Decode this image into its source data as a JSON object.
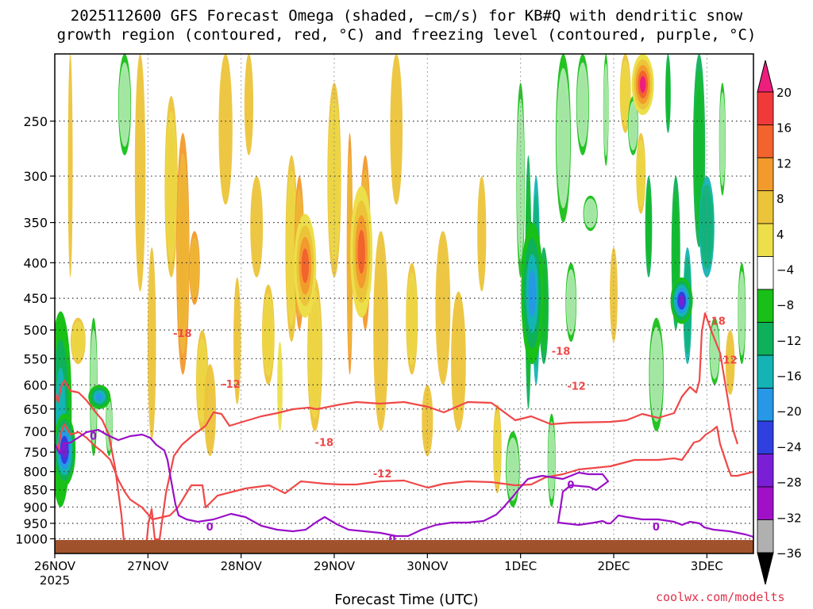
{
  "title_line1": "2025112600 GFS Forecast Omega (shaded, −cm/s) for KB#Q with dendritic snow",
  "title_line2": "growth region (contoured, red, °C) and freezing level (contoured, purple, °C)",
  "xlabel": "Forecast Time (UTC)",
  "credit": "coolwx.com/modelts",
  "chart_data": {
    "type": "heatmap",
    "ylabel": "",
    "y_axis": {
      "ticks": [
        250,
        300,
        350,
        400,
        450,
        500,
        550,
        600,
        650,
        700,
        750,
        800,
        850,
        900,
        950,
        1000
      ],
      "range": [
        1050,
        200
      ],
      "scale": "log-pressure"
    },
    "x_axis": {
      "ticks": [
        "26NOV",
        "27NOV",
        "28NOV",
        "29NOV",
        "30NOV",
        "1DEC",
        "2DEC",
        "3DEC"
      ],
      "first_tick_sublabel": "2025",
      "range_hours": [
        0,
        180
      ]
    },
    "colorbar": {
      "labels": [
        "20",
        "16",
        "12",
        "8",
        "4",
        "−4",
        "−8",
        "−12",
        "−16",
        "−20",
        "−24",
        "−28",
        "−32",
        "−36"
      ],
      "colors": [
        "#ee1e7c",
        "#f03a3a",
        "#f2632e",
        "#f29a2c",
        "#ecc43a",
        "#ecdf4a",
        "#ffffff",
        "#18c018",
        "#0fb05a",
        "#14b4b4",
        "#2698e6",
        "#2f3fe0",
        "#7a1fd6",
        "#a010c6",
        "#b0b0b0",
        "#000000"
      ]
    },
    "contours_red_C": [
      {
        "label": "-18",
        "points": [
          [
            0,
            495
          ],
          [
            4,
            507
          ],
          [
            8,
            488
          ],
          [
            12,
            480
          ],
          [
            20,
            493
          ],
          [
            30,
            495
          ],
          [
            40,
            505
          ],
          [
            50,
            518
          ],
          [
            60,
            530
          ],
          [
            68,
            548
          ],
          [
            76,
            590
          ],
          [
            84,
            650
          ],
          [
            92,
            735
          ],
          [
            100,
            732
          ],
          [
            108,
            728
          ],
          [
            114,
            700
          ],
          [
            118,
            660
          ],
          [
            122,
            642
          ],
          [
            126,
            680
          ],
          [
            132,
            680
          ],
          [
            140,
            622
          ],
          [
            150,
            575
          ],
          [
            160,
            561
          ],
          [
            175,
            548
          ],
          [
            190,
            537
          ],
          [
            200,
            520
          ],
          [
            210,
            522
          ],
          [
            220,
            537
          ],
          [
            240,
            531
          ],
          [
            260,
            525
          ],
          [
            280,
            521
          ],
          [
            300,
            516
          ],
          [
            320,
            514
          ],
          [
            330,
            516
          ],
          [
            360,
            510
          ],
          [
            380,
            507
          ],
          [
            410,
            509
          ],
          [
            440,
            507
          ],
          [
            470,
            513
          ],
          [
            490,
            520
          ],
          [
            520,
            507
          ],
          [
            550,
            508
          ],
          [
            580,
            530
          ],
          [
            600,
            525
          ],
          [
            625,
            535
          ],
          [
            650,
            533
          ],
          [
            700,
            532
          ],
          [
            720,
            530
          ],
          [
            740,
            522
          ],
          [
            760,
            527
          ],
          [
            780,
            521
          ],
          [
            790,
            500
          ],
          [
            800,
            488
          ],
          [
            808,
            495
          ],
          [
            812,
            480
          ],
          [
            815,
            418
          ],
          [
            819,
            395
          ],
          [
            828,
            420
          ],
          [
            838,
            445
          ],
          [
            848,
            505
          ],
          [
            854,
            541
          ],
          [
            860,
            560
          ]
        ]
      },
      {
        "label": "-12",
        "points": [
          [
            0,
            560
          ],
          [
            4,
            568
          ],
          [
            8,
            545
          ],
          [
            12,
            535
          ],
          [
            20,
            548
          ],
          [
            30,
            545
          ],
          [
            40,
            552
          ],
          [
            50,
            562
          ],
          [
            60,
            570
          ],
          [
            70,
            580
          ],
          [
            80,
            605
          ],
          [
            88,
            620
          ],
          [
            95,
            630
          ],
          [
            110,
            640
          ],
          [
            123,
            655
          ],
          [
            145,
            650
          ],
          [
            155,
            640
          ],
          [
            167,
            620
          ],
          [
            172,
            612
          ],
          [
            186,
            612
          ],
          [
            190,
            640
          ],
          [
            205,
            625
          ],
          [
            240,
            616
          ],
          [
            270,
            612
          ],
          [
            290,
            622
          ],
          [
            310,
            607
          ],
          [
            340,
            610
          ],
          [
            360,
            611
          ],
          [
            380,
            611
          ],
          [
            410,
            607
          ],
          [
            440,
            606
          ],
          [
            470,
            615
          ],
          [
            490,
            610
          ],
          [
            520,
            607
          ],
          [
            550,
            608
          ],
          [
            580,
            612
          ],
          [
            600,
            611
          ],
          [
            618,
            602
          ],
          [
            640,
            598
          ],
          [
            660,
            592
          ],
          [
            700,
            588
          ],
          [
            730,
            580
          ],
          [
            760,
            580
          ],
          [
            780,
            578
          ],
          [
            790,
            580
          ],
          [
            805,
            558
          ],
          [
            812,
            556
          ],
          [
            820,
            548
          ],
          [
            828,
            543
          ],
          [
            834,
            538
          ],
          [
            838,
            560
          ],
          [
            848,
            590
          ],
          [
            852,
            600
          ],
          [
            860,
            600
          ],
          [
            880,
            595
          ]
        ]
      },
      {
        "label": "0",
        "points": [
          [
            0,
            560
          ],
          [
            6,
            572
          ],
          [
            10,
            560
          ],
          [
            20,
            558
          ],
          [
            40,
            545
          ],
          [
            55,
            542
          ],
          [
            65,
            548
          ],
          [
            80,
            555
          ],
          [
            95,
            550
          ],
          [
            110,
            548
          ],
          [
            120,
            552
          ],
          [
            128,
            561
          ],
          [
            138,
            568
          ],
          [
            142,
            580
          ],
          [
            146,
            603
          ],
          [
            150,
            625
          ],
          [
            152,
            636
          ],
          [
            156,
            650
          ],
          [
            166,
            655
          ],
          [
            180,
            658
          ],
          [
            200,
            655
          ],
          [
            222,
            648
          ],
          [
            240,
            652
          ],
          [
            260,
            663
          ],
          [
            280,
            668
          ],
          [
            300,
            670
          ],
          [
            316,
            668
          ],
          [
            330,
            658
          ],
          [
            340,
            652
          ],
          [
            355,
            661
          ],
          [
            370,
            668
          ],
          [
            390,
            670
          ],
          [
            410,
            672
          ],
          [
            430,
            676
          ],
          [
            445,
            676
          ],
          [
            462,
            668
          ],
          [
            480,
            662
          ],
          [
            500,
            659
          ],
          [
            520,
            659
          ],
          [
            540,
            657
          ],
          [
            556,
            649
          ],
          [
            565,
            640
          ],
          [
            578,
            625
          ],
          [
            586,
            615
          ],
          [
            596,
            604
          ],
          [
            614,
            600
          ],
          [
            640,
            604
          ],
          [
            660,
            596
          ],
          [
            672,
            598
          ],
          [
            690,
            598
          ],
          [
            697,
            607
          ],
          [
            682,
            618
          ],
          [
            673,
            614
          ],
          [
            650,
            612
          ],
          [
            640,
            620
          ],
          [
            637,
            640
          ],
          [
            634,
            659
          ],
          [
            660,
            662
          ],
          [
            680,
            659
          ],
          [
            690,
            657
          ],
          [
            696,
            660
          ],
          [
            700,
            660
          ],
          [
            710,
            650
          ],
          [
            720,
            652
          ],
          [
            740,
            655
          ],
          [
            760,
            655
          ],
          [
            780,
            658
          ],
          [
            790,
            662
          ],
          [
            800,
            658
          ],
          [
            812,
            660
          ],
          [
            818,
            665
          ],
          [
            830,
            668
          ],
          [
            850,
            670
          ],
          [
            870,
            674
          ],
          [
            880,
            677
          ],
          [
            880,
            680
          ]
        ]
      }
    ],
    "contour_labels": [
      {
        "text": "-18",
        "hour": 30.5,
        "hPa": 505
      },
      {
        "text": "-12",
        "hour": 43,
        "hPa": 598
      },
      {
        "text": "-18",
        "hour": 67,
        "hPa": 725
      },
      {
        "text": "-12",
        "hour": 82,
        "hPa": 805
      },
      {
        "text": "-18",
        "hour": 128,
        "hPa": 536
      },
      {
        "text": "-12",
        "hour": 132,
        "hPa": 602
      },
      {
        "text": "-18",
        "hour": 168,
        "hPa": 485
      },
      {
        "text": "-12",
        "hour": 171,
        "hPa": 552
      },
      {
        "text": "0",
        "hour": 9,
        "hPa": 710
      },
      {
        "text": "0",
        "hour": 39,
        "hPa": 960
      },
      {
        "text": "0",
        "hour": 86,
        "hPa": 1000
      },
      {
        "text": "0",
        "hour": 132,
        "hPa": 835
      },
      {
        "text": "0",
        "hour": 154,
        "hPa": 960
      }
    ],
    "omega_features": [
      {
        "hour": 1.5,
        "hPa_top": 470,
        "hPa_bot": 900,
        "value": -16
      },
      {
        "hour": 2.5,
        "hPa_top": 660,
        "hPa_bot": 840,
        "value": -28
      },
      {
        "hour": 11.5,
        "hPa_top": 600,
        "hPa_bot": 650,
        "value": -20
      },
      {
        "hour": 64.5,
        "hPa_top": 340,
        "hPa_bot": 480,
        "value": 16
      },
      {
        "hour": 79,
        "hPa_top": 310,
        "hPa_bot": 480,
        "value": 16
      },
      {
        "hour": 123,
        "hPa_top": 350,
        "hPa_bot": 560,
        "value": -20
      },
      {
        "hour": 151.5,
        "hPa_top": 200,
        "hPa_bot": 245,
        "value": 20
      },
      {
        "hour": 161.5,
        "hPa_top": 420,
        "hPa_bot": 490,
        "value": -28
      }
    ]
  }
}
